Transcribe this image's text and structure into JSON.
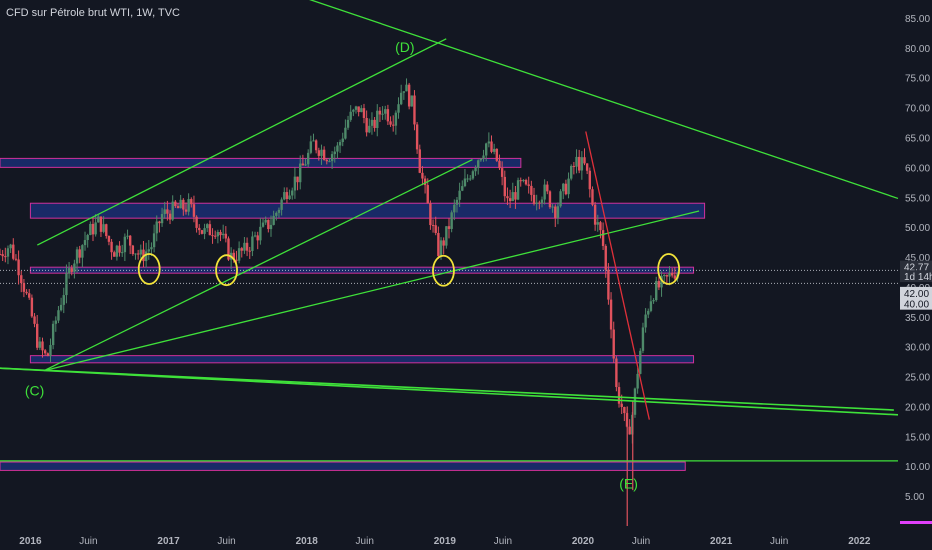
{
  "chart_data": {
    "type": "candlestick",
    "title": "CFD sur Pétrole brut WTI, 1W, TVC",
    "ylim": [
      0,
      88
    ],
    "xlim": [
      2015.78,
      2022.28
    ],
    "y_ticks": [
      "85.00",
      "80.00",
      "75.00",
      "70.00",
      "65.00",
      "60.00",
      "55.00",
      "50.00",
      "45.00",
      "40.00",
      "35.00",
      "30.00",
      "25.00",
      "20.00",
      "15.00",
      "10.00",
      "5.00"
    ],
    "x_ticks": [
      {
        "label": "2016",
        "x": 2016.0,
        "bold": true
      },
      {
        "label": "Juin",
        "x": 2016.42,
        "bold": false
      },
      {
        "label": "2017",
        "x": 2017.0,
        "bold": true
      },
      {
        "label": "Juin",
        "x": 2017.42,
        "bold": false
      },
      {
        "label": "2018",
        "x": 2018.0,
        "bold": true
      },
      {
        "label": "Juin",
        "x": 2018.42,
        "bold": false
      },
      {
        "label": "2019",
        "x": 2019.0,
        "bold": true
      },
      {
        "label": "Juin",
        "x": 2019.42,
        "bold": false
      },
      {
        "label": "2020",
        "x": 2020.0,
        "bold": true
      },
      {
        "label": "Juin",
        "x": 2020.42,
        "bold": false
      },
      {
        "label": "2021",
        "x": 2021.0,
        "bold": true
      },
      {
        "label": "Juin",
        "x": 2021.42,
        "bold": false
      },
      {
        "label": "2022",
        "x": 2022.0,
        "bold": true
      }
    ],
    "price_path": [
      [
        2015.78,
        45.5
      ],
      [
        2015.85,
        47
      ],
      [
        2015.92,
        43
      ],
      [
        2016.0,
        36
      ],
      [
        2016.06,
        30
      ],
      [
        2016.12,
        28
      ],
      [
        2016.2,
        36
      ],
      [
        2016.3,
        44
      ],
      [
        2016.42,
        49
      ],
      [
        2016.5,
        51
      ],
      [
        2016.6,
        46
      ],
      [
        2016.7,
        48
      ],
      [
        2016.8,
        45
      ],
      [
        2016.88,
        47
      ],
      [
        2016.95,
        52
      ],
      [
        2017.05,
        53
      ],
      [
        2017.15,
        53.5
      ],
      [
        2017.25,
        49
      ],
      [
        2017.35,
        50
      ],
      [
        2017.45,
        45
      ],
      [
        2017.55,
        46
      ],
      [
        2017.65,
        49
      ],
      [
        2017.75,
        51
      ],
      [
        2017.85,
        56
      ],
      [
        2017.95,
        59
      ],
      [
        2018.05,
        64
      ],
      [
        2018.15,
        62
      ],
      [
        2018.22,
        63
      ],
      [
        2018.3,
        68
      ],
      [
        2018.38,
        70
      ],
      [
        2018.46,
        66
      ],
      [
        2018.55,
        70
      ],
      [
        2018.62,
        68
      ],
      [
        2018.7,
        74
      ],
      [
        2018.77,
        70
      ],
      [
        2018.82,
        60
      ],
      [
        2018.88,
        53
      ],
      [
        2018.95,
        46
      ],
      [
        2019.0,
        48
      ],
      [
        2019.08,
        54
      ],
      [
        2019.2,
        60
      ],
      [
        2019.3,
        64
      ],
      [
        2019.38,
        61
      ],
      [
        2019.45,
        54
      ],
      [
        2019.55,
        57
      ],
      [
        2019.65,
        55
      ],
      [
        2019.72,
        56
      ],
      [
        2019.8,
        53
      ],
      [
        2019.88,
        57
      ],
      [
        2019.95,
        61
      ],
      [
        2020.02,
        60
      ],
      [
        2020.08,
        52
      ],
      [
        2020.14,
        48
      ],
      [
        2020.2,
        35
      ],
      [
        2020.24,
        23
      ],
      [
        2020.28,
        20
      ],
      [
        2020.32,
        15
      ],
      [
        2020.36,
        19
      ],
      [
        2020.4,
        27
      ],
      [
        2020.45,
        35
      ],
      [
        2020.5,
        39
      ],
      [
        2020.55,
        40
      ],
      [
        2020.6,
        41
      ],
      [
        2020.65,
        42.5
      ],
      [
        2020.7,
        42.8
      ]
    ],
    "wicks": [
      {
        "x": 2020.32,
        "high": 20,
        "low": 0
      },
      {
        "x": 2020.36,
        "high": 21,
        "low": 6
      }
    ],
    "zones": [
      {
        "x0": 2015.78,
        "x1": 2019.55,
        "y0": 60,
        "y1": 61.5
      },
      {
        "x0": 2016.0,
        "x1": 2020.88,
        "y0": 51.5,
        "y1": 54
      },
      {
        "x0": 2016.0,
        "x1": 2020.8,
        "y0": 42.3,
        "y1": 43.3
      },
      {
        "x0": 2016.0,
        "x1": 2020.8,
        "y0": 27.3,
        "y1": 28.5
      },
      {
        "x0": 2015.78,
        "x1": 2020.74,
        "y0": 9.3,
        "y1": 10.7
      }
    ],
    "trendlines": [
      {
        "name": "upper-channel",
        "x0": 2016.05,
        "y0": 47,
        "x1": 2019.01,
        "y1": 81.5
      },
      {
        "name": "descending-resistance",
        "x0": 2017.43,
        "y0": 92.7,
        "x1": 2022.28,
        "y1": 54.8
      },
      {
        "name": "mid-channel",
        "x0": 2016.1,
        "y0": 26,
        "x1": 2019.2,
        "y1": 61.3
      },
      {
        "name": "long-support-rising",
        "x0": 2016.1,
        "y0": 26,
        "x1": 2020.84,
        "y1": 52.7
      },
      {
        "name": "lower-support-1",
        "x0": 2015.78,
        "y0": 26.4,
        "x1": 2022.25,
        "y1": 19.4
      },
      {
        "name": "lower-support-2",
        "x0": 2015.78,
        "y0": 26.4,
        "x1": 2022.28,
        "y1": 18.6
      },
      {
        "name": "horizontal-support",
        "x0": 2015.78,
        "y0": 10.9,
        "x1": 2022.28,
        "y1": 10.9
      },
      {
        "name": "crash-line",
        "x0": 2020.02,
        "y0": 66,
        "x1": 2020.48,
        "y1": 17.8
      }
    ],
    "circles": [
      {
        "x": 2016.86,
        "y": 43
      },
      {
        "x": 2017.42,
        "y": 42.8
      },
      {
        "x": 2018.99,
        "y": 42.7
      },
      {
        "x": 2020.62,
        "y": 43
      }
    ],
    "annotations": [
      {
        "text": "(D)",
        "x": 2018.71,
        "y": 79.3
      },
      {
        "text": "(C)",
        "x": 2016.03,
        "y": 21.8
      },
      {
        "text": "(E)",
        "x": 2020.33,
        "y": 6.3
      }
    ],
    "reference_lines": [
      42.77,
      40.6
    ],
    "price_tags": [
      {
        "text": "42.77",
        "y": 43.4,
        "bg": "#2a2e39",
        "fg": "#d1d4dc"
      },
      {
        "text": "1d 14h",
        "y": 41.8,
        "bg": "#2a2e39",
        "fg": "#d1d4dc"
      },
      {
        "text": "42.00",
        "y": 39.0,
        "bg": "#d1d4dc",
        "fg": "#131722"
      },
      {
        "text": "40.00",
        "y": 37.2,
        "bg": "#d1d4dc",
        "fg": "#131722"
      }
    ],
    "colors": {
      "background": "#131722",
      "trend": "#3fe13a",
      "crash": "#e0303a",
      "zone_fill": "#1f3aa0",
      "zone_edge": "#d0309a",
      "circle": "#f2e33a",
      "up": "#4e8a6a",
      "down": "#e0525d",
      "axis_text": "#b2b5be"
    }
  }
}
